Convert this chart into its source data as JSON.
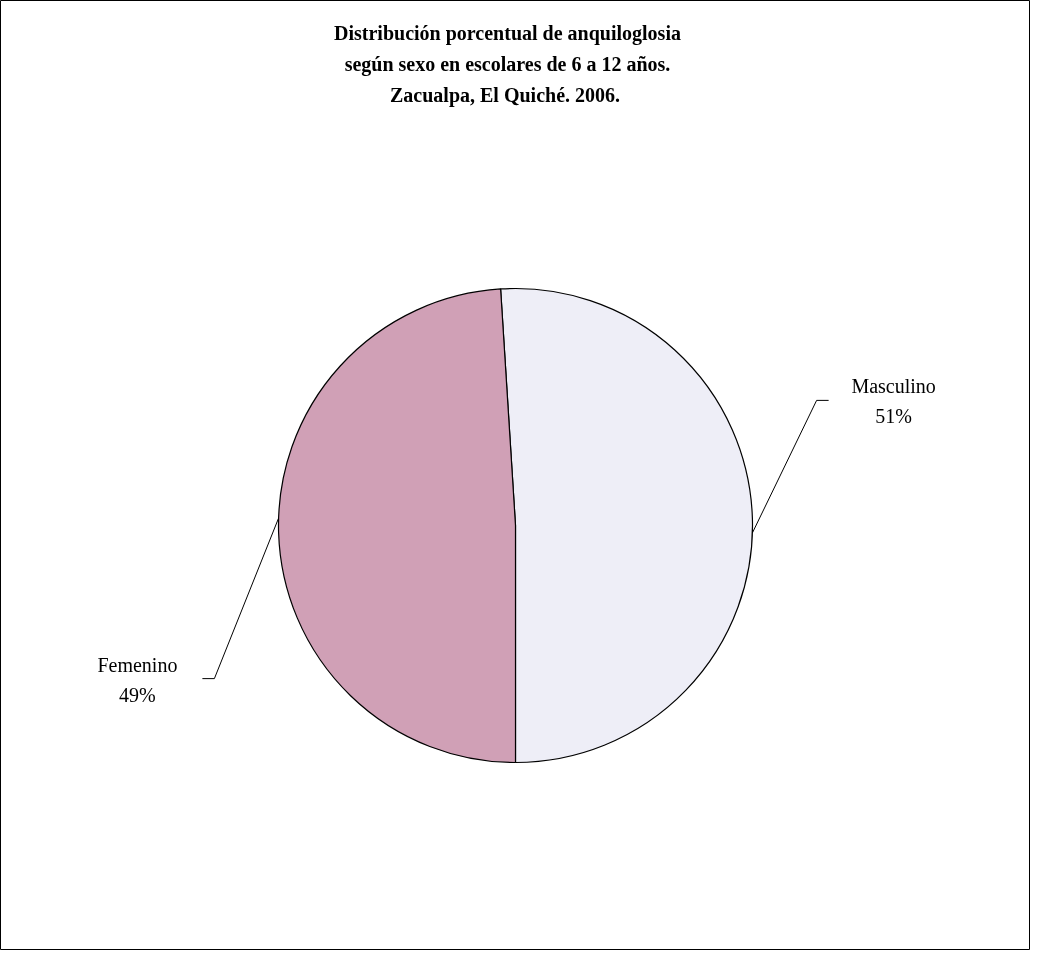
{
  "chart_data": {
    "type": "pie",
    "title": "Distribución porcentual de anquiloglosia\nsegún sexo en escolares de 6 a 12 años.\nZacualpa, El Quiché.  2006.",
    "categories": [
      "Masculino",
      "Femenino"
    ],
    "values": [
      51,
      49
    ],
    "colors": [
      "#eeeef7",
      "#d0a0b6"
    ],
    "value_labels": [
      "51%",
      "49%"
    ]
  }
}
